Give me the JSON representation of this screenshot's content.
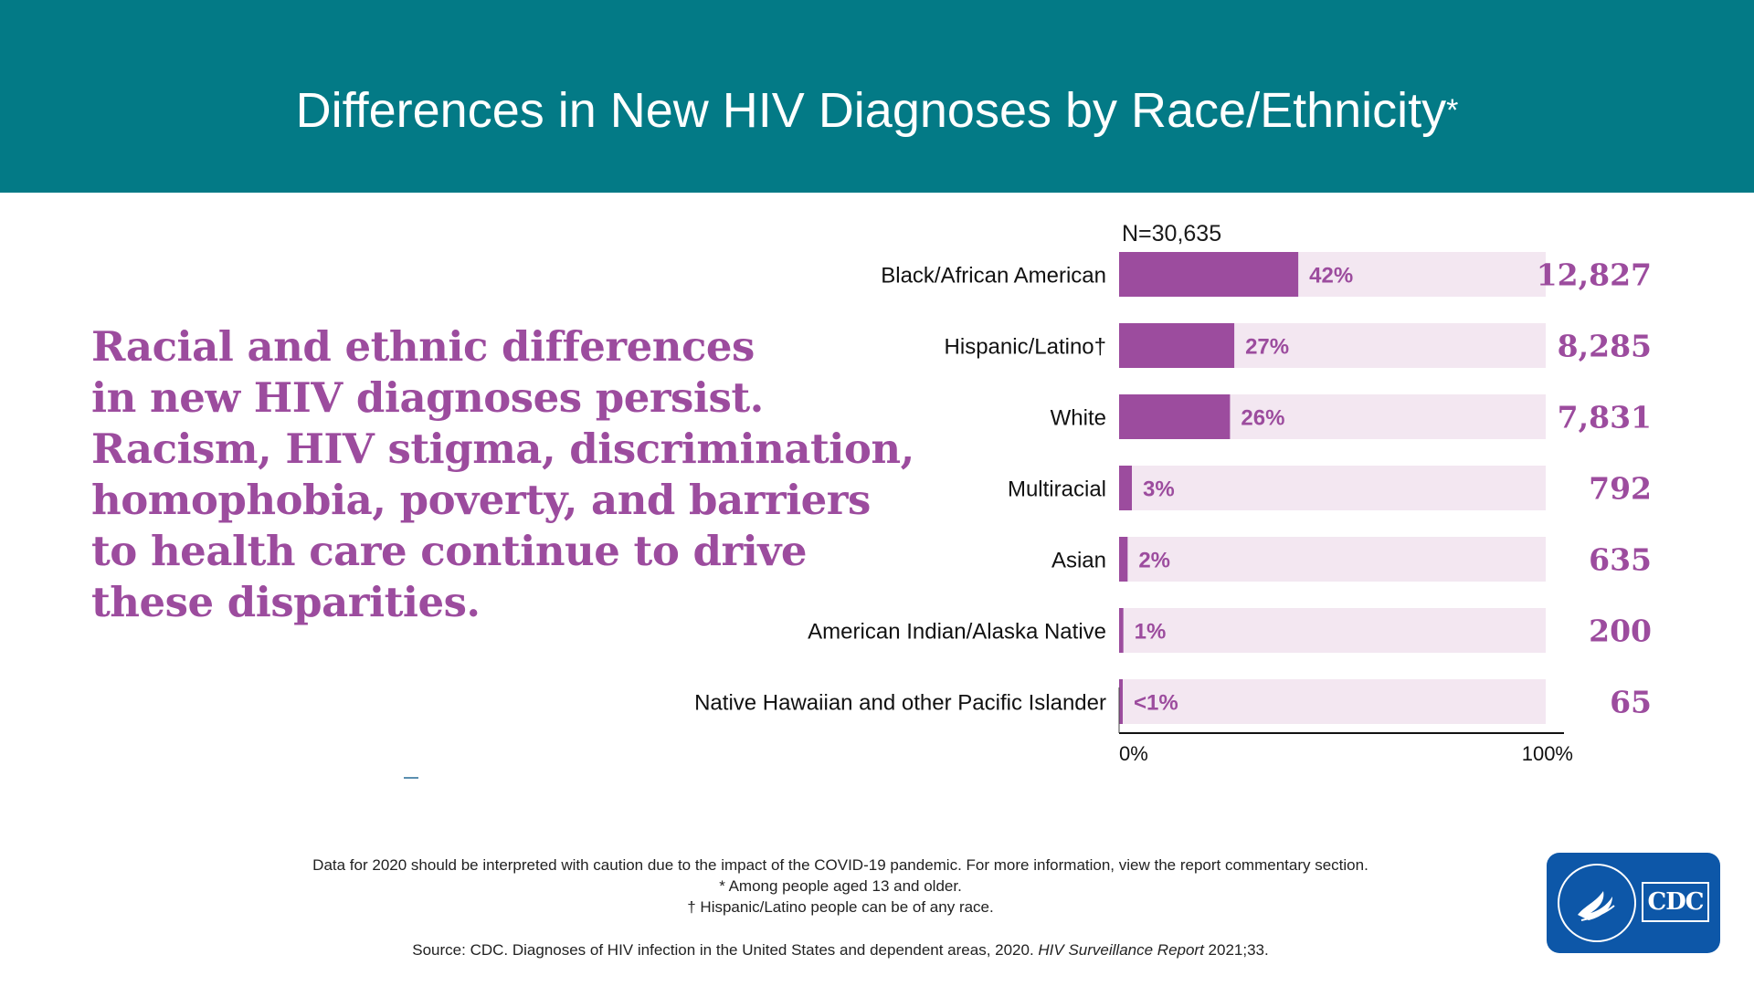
{
  "header": {
    "title": "Differences in New HIV Diagnoses by Race/Ethnicity",
    "title_mark": "*",
    "background": "#037a86"
  },
  "lead_text": [
    "Racial and ethnic differences",
    "in new HIV diagnoses persist.",
    "Racism, HIV stigma, discrimination,",
    "homophobia, poverty, and barriers",
    "to health care continue to drive",
    "these disparities."
  ],
  "chart_data": {
    "type": "bar",
    "orientation": "horizontal",
    "n_label": "N=30,635",
    "categories": [
      "Black/African American",
      "Hispanic/Latino†",
      "White",
      "Multiracial",
      "Asian",
      "American Indian/Alaska Native",
      "Native Hawaiian and other Pacific Islander"
    ],
    "values": [
      42,
      27,
      26,
      3,
      2,
      1,
      0.5
    ],
    "percent_labels": [
      "42%",
      "27%",
      "26%",
      "3%",
      "2%",
      "1%",
      "<1%"
    ],
    "counts": [
      "12,827",
      "8,285",
      "7,831",
      "792",
      "635",
      "200",
      "65"
    ],
    "xlim": [
      0,
      100
    ],
    "x_tick_labels": [
      "0%",
      "100%"
    ],
    "colors": {
      "bar": "#9c4c9e",
      "track": "#f3e7f1",
      "label": "#9c4c9e",
      "count": "#9c4c9e"
    },
    "grid": false
  },
  "footer": {
    "note": "Data for 2020 should be interpreted with caution due to the impact of the COVID-19 pandemic. For more information, view the report commentary section.",
    "asterisk_note": "* Among people aged 13 and older.",
    "dagger_note": "† Hispanic/Latino people can be of any race.",
    "source_prefix": "Source: CDC. Diagnoses of HIV infection in the United States and dependent areas, 2020. ",
    "source_italic": "HIV Surveillance Report",
    "source_suffix": " 2021;33."
  },
  "logo": {
    "text": "CDC",
    "background": "#0d57a8"
  }
}
